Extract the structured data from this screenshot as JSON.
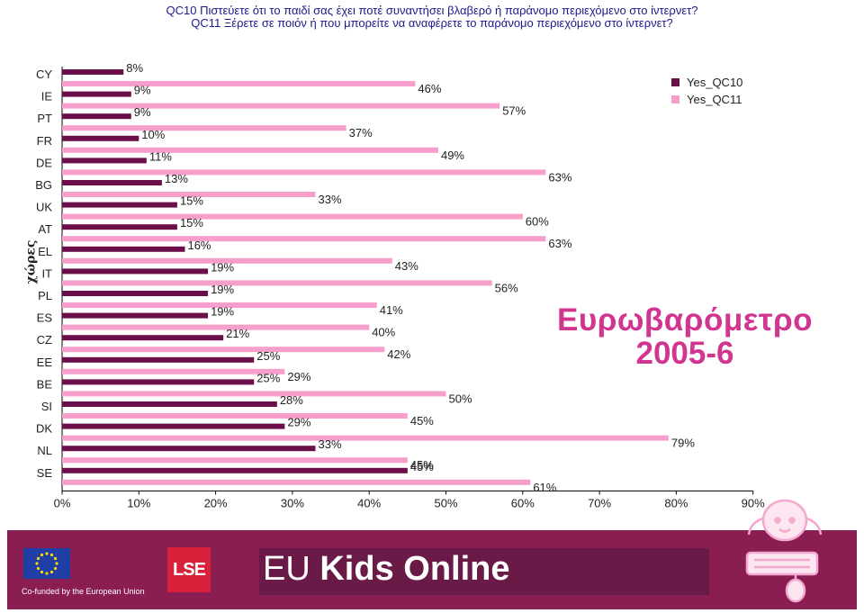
{
  "title": {
    "line1": "QC10 Πιστεύετε ότι το παιδί σας έχει ποτέ συναντήσει βλαβερό ή παράνομο περιεχόμενο στο ίντερνετ?",
    "line2": "QC11 Ξέρετε σε ποιόν ή που μπορείτε να αναφέρετε το παράνομο περιεχόμενο στο ίντερνετ?"
  },
  "chart_data": {
    "type": "bar",
    "orientation": "horizontal",
    "ylabel": "χώρες",
    "categories": [
      "CY",
      "IE",
      "PT",
      "FR",
      "DE",
      "BG",
      "UK",
      "AT",
      "EL",
      "IT",
      "PL",
      "ES",
      "CZ",
      "EE",
      "BE",
      "SI",
      "DK",
      "NL",
      "SE"
    ],
    "series": [
      {
        "name": "Yes_QC10",
        "color": "#6b0f4a",
        "values": [
          8,
          9,
          9,
          10,
          11,
          13,
          15,
          15,
          16,
          19,
          19,
          19,
          21,
          25,
          25,
          28,
          29,
          33,
          45
        ]
      },
      {
        "name": "Yes_QC11",
        "color": "#f79fcc",
        "values": [
          46,
          57,
          37,
          49,
          63,
          33,
          60,
          63,
          43,
          56,
          41,
          40,
          42,
          29,
          50,
          45,
          79,
          45,
          61
        ]
      }
    ],
    "xlim": [
      0,
      90
    ],
    "xticks": [
      0,
      10,
      20,
      30,
      40,
      50,
      60,
      70,
      80,
      90
    ],
    "tick_suffix": "%",
    "legend_position": "top-right",
    "grid": false
  },
  "annotation": {
    "line1": "Ευρωβαρόμετρο",
    "line2": "2005-6"
  },
  "footer": {
    "eu_caption": "Co-funded by the European Union",
    "lse_logo": "LSE",
    "brand_part1": "EU",
    "brand_part2": "Kids Online"
  }
}
